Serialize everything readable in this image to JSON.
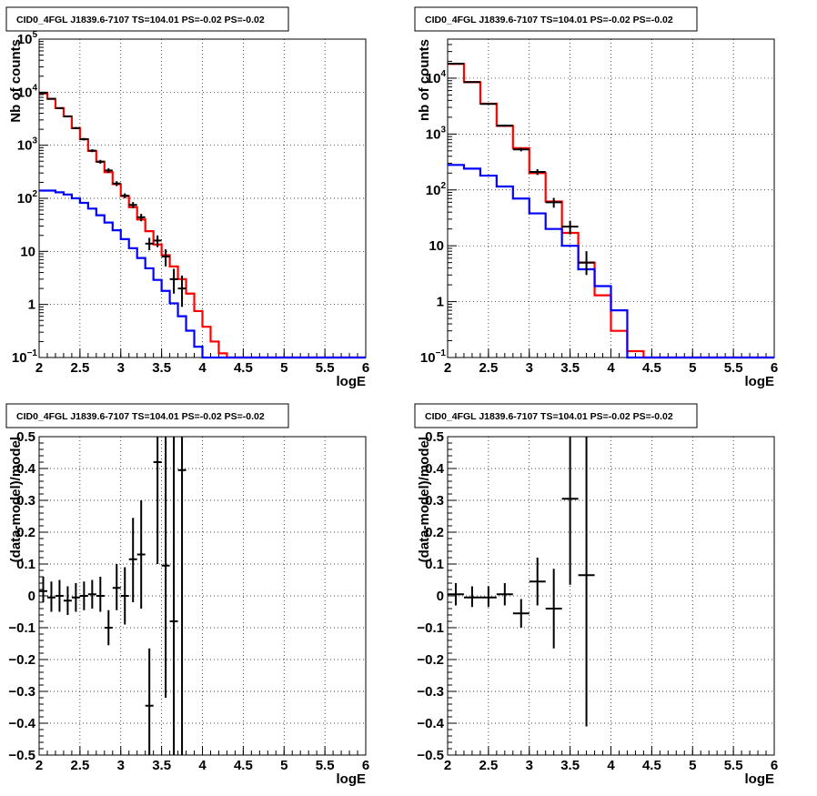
{
  "chart_data": [
    {
      "type": "histogram",
      "title": "CID0_4FGL J1839.6-7107 TS=104.01 PS=-0.02 PS=-0.02",
      "xlabel": "logE",
      "ylabel": "Nb of counts",
      "xlim": [
        2,
        6
      ],
      "ylim": [
        0.1,
        100000
      ],
      "yscale": "log",
      "grid": true,
      "xticks": [
        "2",
        "2.5",
        "3",
        "3.5",
        "4",
        "4.5",
        "5",
        "5.5",
        "6"
      ],
      "yticks": [
        {
          "v": 0.1,
          "base": "10",
          "exp": "−1"
        },
        {
          "v": 1,
          "base": "1",
          "exp": ""
        },
        {
          "v": 10,
          "base": "10",
          "exp": ""
        },
        {
          "v": 100,
          "base": "10",
          "exp": "2"
        },
        {
          "v": 1000,
          "base": "10",
          "exp": "3"
        },
        {
          "v": 10000,
          "base": "10",
          "exp": "4"
        },
        {
          "v": 100000,
          "base": "10",
          "exp": "5"
        }
      ],
      "edges": [
        2.0,
        2.1,
        2.2,
        2.3,
        2.4,
        2.5,
        2.6,
        2.7,
        2.8,
        2.9,
        3.0,
        3.1,
        3.2,
        3.3,
        3.4,
        3.5,
        3.6,
        3.7,
        3.8,
        3.9,
        4.0,
        4.1,
        4.2,
        4.3,
        4.4,
        4.5,
        4.6,
        4.7,
        4.8,
        4.9,
        5.0,
        5.1,
        5.2,
        5.3,
        5.4,
        5.5,
        5.6,
        5.7,
        5.8,
        5.9,
        6.0
      ],
      "series": [
        {
          "color": "#ff0000",
          "kind": "step",
          "values": [
            9500,
            7500,
            5000,
            3500,
            2100,
            1300,
            780,
            490,
            310,
            185,
            110,
            68,
            40,
            24,
            13.5,
            8.5,
            5.2,
            3,
            1.6,
            0.75,
            0.38,
            0.2,
            0.12,
            0.1,
            0.1,
            0.1,
            0.1,
            0.1,
            0.1,
            0.1,
            0.1,
            0.1,
            0.1,
            0.1,
            0.1,
            0.1,
            0.1,
            0.1,
            0.1,
            0.1
          ]
        },
        {
          "color": "#0000ff",
          "kind": "step",
          "values": [
            140,
            140,
            130,
            118,
            100,
            82,
            64,
            48,
            35,
            25,
            17,
            11.5,
            7.5,
            4.8,
            2.9,
            1.8,
            1.05,
            0.6,
            0.32,
            0.16,
            0.1,
            0.1,
            0.1,
            0.1,
            0.1,
            0.1,
            0.1,
            0.1,
            0.1,
            0.1,
            0.1,
            0.1,
            0.1,
            0.1,
            0.1,
            0.1,
            0.1,
            0.1,
            0.1,
            0.1
          ]
        },
        {
          "color": "#000000",
          "kind": "points",
          "points": [
            {
              "x": 2.05,
              "y": 9600,
              "lo": 9400,
              "hi": 9800,
              "xe": 0.05
            },
            {
              "x": 2.15,
              "y": 7500,
              "lo": 7300,
              "hi": 7700,
              "xe": 0.05
            },
            {
              "x": 2.25,
              "y": 5000,
              "lo": 4850,
              "hi": 5150,
              "xe": 0.05
            },
            {
              "x": 2.35,
              "y": 3500,
              "lo": 3380,
              "hi": 3620,
              "xe": 0.05
            },
            {
              "x": 2.45,
              "y": 2100,
              "lo": 2010,
              "hi": 2190,
              "xe": 0.05
            },
            {
              "x": 2.55,
              "y": 1300,
              "lo": 1230,
              "hi": 1370,
              "xe": 0.05
            },
            {
              "x": 2.65,
              "y": 790,
              "lo": 740,
              "hi": 840,
              "xe": 0.05
            },
            {
              "x": 2.75,
              "y": 490,
              "lo": 450,
              "hi": 530,
              "xe": 0.05
            },
            {
              "x": 2.85,
              "y": 335,
              "lo": 300,
              "hi": 370,
              "xe": 0.05
            },
            {
              "x": 2.95,
              "y": 190,
              "lo": 170,
              "hi": 210,
              "xe": 0.05
            },
            {
              "x": 3.05,
              "y": 112,
              "lo": 100,
              "hi": 124,
              "xe": 0.05
            },
            {
              "x": 3.15,
              "y": 75,
              "lo": 65,
              "hi": 85,
              "xe": 0.05
            },
            {
              "x": 3.25,
              "y": 44,
              "lo": 37,
              "hi": 51,
              "xe": 0.05
            },
            {
              "x": 3.35,
              "y": 14,
              "lo": 10.5,
              "hi": 18,
              "xe": 0.05
            },
            {
              "x": 3.45,
              "y": 16,
              "lo": 12,
              "hi": 20,
              "xe": 0.05
            },
            {
              "x": 3.55,
              "y": 8,
              "lo": 5.2,
              "hi": 11,
              "xe": 0.05
            },
            {
              "x": 3.65,
              "y": 3,
              "lo": 1.6,
              "hi": 4.7,
              "xe": 0.05
            },
            {
              "x": 3.75,
              "y": 2,
              "lo": 0.9,
              "hi": 3.5,
              "xe": 0.05
            }
          ]
        }
      ]
    },
    {
      "type": "histogram",
      "title": "CID0_4FGL J1839.6-7107 TS=104.01 PS=-0.02 PS=-0.02",
      "xlabel": "logE",
      "ylabel": "nb of counts",
      "xlim": [
        2,
        6
      ],
      "ylim": [
        0.1,
        50000
      ],
      "yscale": "log",
      "grid": true,
      "xticks": [
        "2",
        "2.5",
        "3",
        "3.5",
        "4",
        "4.5",
        "5",
        "5.5",
        "6"
      ],
      "yticks": [
        {
          "v": 0.1,
          "base": "10",
          "exp": "−1"
        },
        {
          "v": 1,
          "base": "1",
          "exp": ""
        },
        {
          "v": 10,
          "base": "10",
          "exp": ""
        },
        {
          "v": 100,
          "base": "10",
          "exp": "2"
        },
        {
          "v": 1000,
          "base": "10",
          "exp": "3"
        },
        {
          "v": 10000,
          "base": "10",
          "exp": "4"
        }
      ],
      "edges": [
        2.0,
        2.2,
        2.4,
        2.6,
        2.8,
        3.0,
        3.2,
        3.4,
        3.6,
        3.8,
        4.0,
        4.2,
        4.4,
        4.6,
        4.8,
        5.0,
        5.2,
        5.4,
        5.6,
        5.8,
        6.0
      ],
      "series": [
        {
          "color": "#ff0000",
          "kind": "step",
          "values": [
            18000,
            8500,
            3500,
            1400,
            560,
            200,
            62,
            17,
            5,
            1.3,
            0.3,
            0.13,
            0.1,
            0.1,
            0.1,
            0.1,
            0.1,
            0.1,
            0.1,
            0.1
          ]
        },
        {
          "color": "#0000ff",
          "kind": "step",
          "values": [
            280,
            240,
            180,
            115,
            70,
            38,
            20,
            10,
            3.8,
            1.9,
            0.7,
            0.1,
            0.1,
            0.1,
            0.1,
            0.1,
            0.1,
            0.1,
            0.1,
            0.1
          ]
        },
        {
          "color": "#000000",
          "kind": "points",
          "points": [
            {
              "x": 2.1,
              "y": 18200,
              "lo": 17950,
              "hi": 18450,
              "xe": 0.1
            },
            {
              "x": 2.3,
              "y": 8500,
              "lo": 8320,
              "hi": 8680,
              "xe": 0.1
            },
            {
              "x": 2.5,
              "y": 3450,
              "lo": 3340,
              "hi": 3560,
              "xe": 0.1
            },
            {
              "x": 2.7,
              "y": 1410,
              "lo": 1340,
              "hi": 1480,
              "xe": 0.1
            },
            {
              "x": 2.9,
              "y": 530,
              "lo": 490,
              "hi": 570,
              "xe": 0.1
            },
            {
              "x": 3.1,
              "y": 210,
              "lo": 185,
              "hi": 235,
              "xe": 0.1
            },
            {
              "x": 3.3,
              "y": 60,
              "lo": 48,
              "hi": 72,
              "xe": 0.1
            },
            {
              "x": 3.5,
              "y": 22,
              "lo": 16,
              "hi": 28,
              "xe": 0.1
            },
            {
              "x": 3.7,
              "y": 5,
              "lo": 3,
              "hi": 8,
              "xe": 0.1
            }
          ]
        }
      ]
    },
    {
      "type": "scatter",
      "title": "CID0_4FGL J1839.6-7107 TS=104.01 PS=-0.02 PS=-0.02",
      "xlabel": "logE",
      "ylabel": "(data-model)/model",
      "xlim": [
        2,
        6
      ],
      "ylim": [
        -0.5,
        0.5
      ],
      "yscale": "linear",
      "grid": true,
      "xticks": [
        "2",
        "2.5",
        "3",
        "3.5",
        "4",
        "4.5",
        "5",
        "5.5",
        "6"
      ],
      "yticks": [
        "−0.5",
        "−0.4",
        "−0.3",
        "−0.2",
        "−0.1",
        "0",
        "0.1",
        "0.2",
        "0.3",
        "0.4",
        "0.5"
      ],
      "series": [
        {
          "color": "#000000",
          "kind": "points",
          "points": [
            {
              "x": 2.05,
              "y": 0.015,
              "lo": -0.02,
              "hi": 0.06,
              "xe": 0.05
            },
            {
              "x": 2.15,
              "y": -0.005,
              "lo": -0.05,
              "hi": 0.045,
              "xe": 0.05
            },
            {
              "x": 2.25,
              "y": 0.0,
              "lo": -0.05,
              "hi": 0.05,
              "xe": 0.05
            },
            {
              "x": 2.35,
              "y": -0.015,
              "lo": -0.06,
              "hi": 0.03,
              "xe": 0.05
            },
            {
              "x": 2.45,
              "y": -0.005,
              "lo": -0.05,
              "hi": 0.04,
              "xe": 0.05
            },
            {
              "x": 2.55,
              "y": 0.0,
              "lo": -0.045,
              "hi": 0.045,
              "xe": 0.05
            },
            {
              "x": 2.65,
              "y": 0.005,
              "lo": -0.04,
              "hi": 0.05,
              "xe": 0.05
            },
            {
              "x": 2.75,
              "y": 0.0,
              "lo": -0.05,
              "hi": 0.06,
              "xe": 0.05
            },
            {
              "x": 2.85,
              "y": -0.1,
              "lo": -0.155,
              "hi": -0.045,
              "xe": 0.05
            },
            {
              "x": 2.95,
              "y": 0.025,
              "lo": -0.045,
              "hi": 0.1,
              "xe": 0.05
            },
            {
              "x": 3.05,
              "y": 0.0,
              "lo": -0.09,
              "hi": 0.09,
              "xe": 0.05
            },
            {
              "x": 3.15,
              "y": 0.115,
              "lo": -0.02,
              "hi": 0.245,
              "xe": 0.05
            },
            {
              "x": 3.25,
              "y": 0.13,
              "lo": -0.04,
              "hi": 0.3,
              "xe": 0.05
            },
            {
              "x": 3.35,
              "y": -0.345,
              "lo": -0.5,
              "hi": -0.165,
              "xe": 0.05
            },
            {
              "x": 3.45,
              "y": 0.42,
              "lo": 0.1,
              "hi": 0.5,
              "xe": 0.05
            },
            {
              "x": 3.55,
              "y": 0.095,
              "lo": -0.32,
              "hi": 0.5,
              "xe": 0.05
            },
            {
              "x": 3.65,
              "y": -0.08,
              "lo": -0.5,
              "hi": 0.5,
              "xe": 0.05
            },
            {
              "x": 3.75,
              "y": 0.395,
              "lo": -0.5,
              "hi": 0.5,
              "xe": 0.05
            }
          ]
        }
      ]
    },
    {
      "type": "scatter",
      "title": "CID0_4FGL J1839.6-7107 TS=104.01 PS=-0.02 PS=-0.02",
      "xlabel": "logE",
      "ylabel": "(data-model)/model",
      "xlim": [
        2,
        6
      ],
      "ylim": [
        -0.5,
        0.5
      ],
      "yscale": "linear",
      "grid": true,
      "xticks": [
        "2",
        "2.5",
        "3",
        "3.5",
        "4",
        "4.5",
        "5",
        "5.5",
        "6"
      ],
      "yticks": [
        "−0.5",
        "−0.4",
        "−0.3",
        "−0.2",
        "−0.1",
        "0",
        "0.1",
        "0.2",
        "0.3",
        "0.4",
        "0.5"
      ],
      "series": [
        {
          "color": "#000000",
          "kind": "points",
          "points": [
            {
              "x": 2.1,
              "y": 0.005,
              "lo": -0.03,
              "hi": 0.04,
              "xe": 0.1
            },
            {
              "x": 2.3,
              "y": -0.005,
              "lo": -0.035,
              "hi": 0.03,
              "xe": 0.1
            },
            {
              "x": 2.5,
              "y": -0.005,
              "lo": -0.035,
              "hi": 0.03,
              "xe": 0.1
            },
            {
              "x": 2.7,
              "y": 0.005,
              "lo": -0.03,
              "hi": 0.04,
              "xe": 0.1
            },
            {
              "x": 2.9,
              "y": -0.055,
              "lo": -0.1,
              "hi": -0.01,
              "xe": 0.1
            },
            {
              "x": 3.1,
              "y": 0.045,
              "lo": -0.03,
              "hi": 0.12,
              "xe": 0.1
            },
            {
              "x": 3.3,
              "y": -0.04,
              "lo": -0.165,
              "hi": 0.085,
              "xe": 0.1
            },
            {
              "x": 3.5,
              "y": 0.305,
              "lo": 0.035,
              "hi": 0.5,
              "xe": 0.1
            },
            {
              "x": 3.7,
              "y": 0.065,
              "lo": -0.41,
              "hi": 0.5,
              "xe": 0.1
            }
          ]
        }
      ]
    }
  ]
}
